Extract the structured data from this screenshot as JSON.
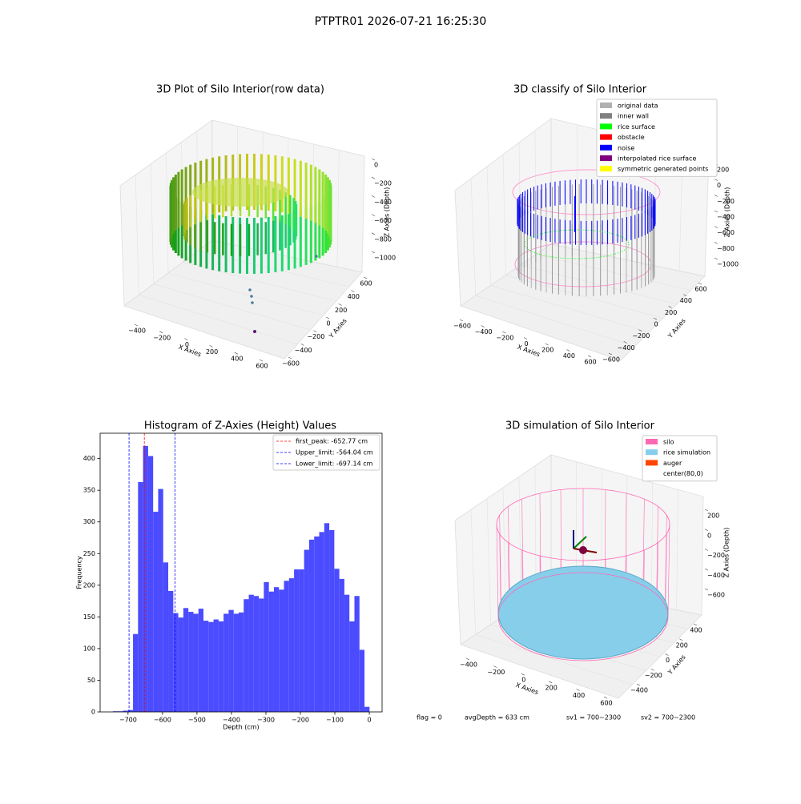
{
  "title": "PTPTR01 2026-07-21 16:25:30",
  "chart_data": [
    {
      "type": "scatter3d",
      "title": "3D Plot of Silo Interior(row data)",
      "xlabel": "X Axies",
      "ylabel": "Y Axies",
      "zlabel": "Z Axies (Depth)",
      "xticks": [
        {
          "value": -400,
          "label": "−400"
        },
        {
          "value": -200,
          "label": "−200"
        },
        0,
        200,
        400,
        600
      ],
      "yticks": [
        {
          "value": -600,
          "label": "−600"
        },
        {
          "value": -400,
          "label": "−400"
        },
        {
          "value": -200,
          "label": "−200"
        },
        0,
        200,
        400,
        600
      ],
      "zticks": [
        0,
        {
          "value": -200,
          "label": "−200"
        },
        {
          "value": -400,
          "label": "−400"
        },
        {
          "value": -600,
          "label": "−600"
        },
        {
          "value": -800,
          "label": "−800"
        },
        {
          "value": -1000,
          "label": "−1000"
        }
      ]
    },
    {
      "type": "scatter3d",
      "title": "3D classify of Silo Interior",
      "xlabel": "X Axies",
      "ylabel": "Y Axies",
      "zlabel": "Z Axies (Depth)",
      "xticks": [
        {
          "value": -600,
          "label": "−600"
        },
        {
          "value": -400,
          "label": "−400"
        },
        {
          "value": -200,
          "label": "−200"
        },
        0,
        200,
        400,
        600
      ],
      "yticks": [
        {
          "value": -600,
          "label": "−600"
        },
        {
          "value": -400,
          "label": "−400"
        },
        {
          "value": -200,
          "label": "−200"
        },
        0,
        200,
        400,
        600
      ],
      "zticks": [
        200,
        0,
        {
          "value": -200,
          "label": "−200"
        },
        {
          "value": -400,
          "label": "−400"
        },
        {
          "value": -600,
          "label": "−600"
        },
        {
          "value": -800,
          "label": "−800"
        },
        {
          "value": -1000,
          "label": "−1000"
        }
      ],
      "legend": [
        {
          "name": "original data",
          "color": "#b0b0b0"
        },
        {
          "name": "inner wall",
          "color": "#808080"
        },
        {
          "name": "rice surface",
          "color": "#00ff00"
        },
        {
          "name": "obstacle",
          "color": "#ff0000"
        },
        {
          "name": "noise",
          "color": "#0000ff"
        },
        {
          "name": "interpolated rice surface",
          "color": "#800080"
        },
        {
          "name": "symmetric generated points",
          "color": "#ffff00"
        }
      ]
    },
    {
      "type": "histogram",
      "title": "Histogram of Z-Axies (Height) Values",
      "xlabel": "Depth (cm)",
      "ylabel": "Frequency",
      "color": "#4b4bff",
      "bins": [
        -744.0,
        -729.4,
        -714.8,
        -700.2,
        -685.6,
        -671.0,
        -656.4,
        -641.8,
        -627.2,
        -612.6,
        -598.0,
        -583.4,
        -568.8,
        -554.2,
        -539.6,
        -525.0,
        -510.4,
        -495.8,
        -481.2,
        -466.6,
        -452.0,
        -437.4,
        -422.8,
        -408.2,
        -393.6,
        -379.0,
        -364.4,
        -349.8,
        -335.2,
        -320.6,
        -306.0,
        -291.4,
        -276.8,
        -262.2,
        -247.6,
        -233.0,
        -218.4,
        -203.8,
        -189.2,
        -174.6,
        -160.0,
        -145.4,
        -130.8,
        -116.2,
        -101.6,
        -87.0,
        -72.4,
        -57.8,
        -43.2,
        -28.6,
        -14.0,
        0.6
      ],
      "values": [
        1,
        1,
        2,
        3,
        123,
        363,
        420,
        404,
        316,
        352,
        236,
        191,
        156,
        149,
        164,
        158,
        155,
        163,
        144,
        142,
        146,
        143,
        155,
        161,
        155,
        157,
        178,
        185,
        183,
        179,
        205,
        190,
        197,
        193,
        207,
        211,
        225,
        225,
        256,
        272,
        277,
        284,
        298,
        287,
        226,
        210,
        185,
        143,
        183,
        98,
        8
      ],
      "xlim": [
        -781,
        37
      ],
      "ylim": [
        0,
        440
      ],
      "xticks": [
        {
          "value": -700,
          "label": "−700"
        },
        {
          "value": -600,
          "label": "−600"
        },
        {
          "value": -500,
          "label": "−500"
        },
        {
          "value": -400,
          "label": "−400"
        },
        {
          "value": -300,
          "label": "−300"
        },
        {
          "value": -200,
          "label": "−200"
        },
        {
          "value": -100,
          "label": "−100"
        },
        0
      ],
      "yticks": [
        0,
        50,
        100,
        150,
        200,
        250,
        300,
        350,
        400
      ],
      "vlines": [
        {
          "name": "first_peak",
          "value": -652.77,
          "label": "first_peak: -652.77 cm",
          "color": "#ff0000"
        },
        {
          "name": "Upper_limit",
          "value": -564.04,
          "label": "Upper_limit: -564.04 cm",
          "color": "#0000ff"
        },
        {
          "name": "Lower_limit",
          "value": -697.14,
          "label": "Lower_limit: -697.14 cm",
          "color": "#0000ff"
        }
      ]
    },
    {
      "type": "surface3d",
      "title": "3D simulation of Silo Interior",
      "xlabel": "X Axies",
      "ylabel": "Y Axies",
      "zlabel": "Z Axies (Depth)",
      "xticks": [
        {
          "value": -400,
          "label": "−400"
        },
        {
          "value": -200,
          "label": "−200"
        },
        0,
        200,
        400,
        600
      ],
      "yticks": [
        {
          "value": -400,
          "label": "−400"
        },
        {
          "value": -200,
          "label": "−200"
        },
        0,
        200,
        400
      ],
      "zticks": [
        200,
        0,
        {
          "value": -200,
          "label": "−200"
        },
        {
          "value": -400,
          "label": "−400"
        },
        {
          "value": -600,
          "label": "−600"
        }
      ],
      "legend": [
        {
          "name": "silo",
          "color": "#ff69b4"
        },
        {
          "name": "rice simulation",
          "color": "#87ceeb"
        },
        {
          "name": "auger",
          "color": "#ff4500"
        },
        {
          "name": "center(80,0)",
          "color": "#ffffff"
        }
      ]
    }
  ],
  "footer": [
    "flag = 0",
    "avgDepth = 633 cm",
    "sv1 = 700~2300",
    "sv2 = 700~2300"
  ]
}
